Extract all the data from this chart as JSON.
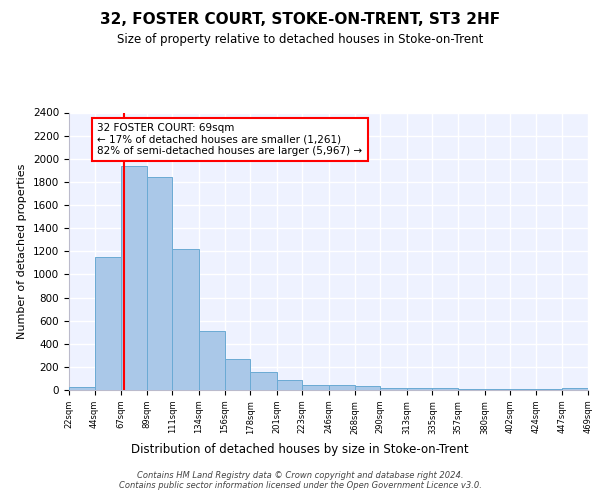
{
  "title": "32, FOSTER COURT, STOKE-ON-TRENT, ST3 2HF",
  "subtitle": "Size of property relative to detached houses in Stoke-on-Trent",
  "xlabel": "Distribution of detached houses by size in Stoke-on-Trent",
  "ylabel": "Number of detached properties",
  "bins": [
    22,
    44,
    67,
    89,
    111,
    134,
    156,
    178,
    201,
    223,
    246,
    268,
    290,
    313,
    335,
    357,
    380,
    402,
    424,
    447,
    469
  ],
  "values": [
    30,
    1150,
    1940,
    1840,
    1220,
    510,
    265,
    155,
    85,
    45,
    40,
    35,
    20,
    20,
    15,
    10,
    5,
    10,
    5,
    20
  ],
  "property_size": 69,
  "annotation_text": "32 FOSTER COURT: 69sqm\n← 17% of detached houses are smaller (1,261)\n82% of semi-detached houses are larger (5,967) →",
  "bar_color": "#aac8e8",
  "bar_edge_color": "#6aaad4",
  "vline_color": "red",
  "annotation_box_color": "white",
  "annotation_box_edge": "red",
  "background_color": "#eef2ff",
  "grid_color": "white",
  "footer": "Contains HM Land Registry data © Crown copyright and database right 2024.\nContains public sector information licensed under the Open Government Licence v3.0.",
  "ylim": [
    0,
    2400
  ],
  "yticks": [
    0,
    200,
    400,
    600,
    800,
    1000,
    1200,
    1400,
    1600,
    1800,
    2000,
    2200,
    2400
  ],
  "xtick_labels": [
    "22sqm",
    "44sqm",
    "67sqm",
    "89sqm",
    "111sqm",
    "134sqm",
    "156sqm",
    "178sqm",
    "201sqm",
    "223sqm",
    "246sqm",
    "268sqm",
    "290sqm",
    "313sqm",
    "335sqm",
    "357sqm",
    "380sqm",
    "402sqm",
    "424sqm",
    "447sqm",
    "469sqm"
  ]
}
